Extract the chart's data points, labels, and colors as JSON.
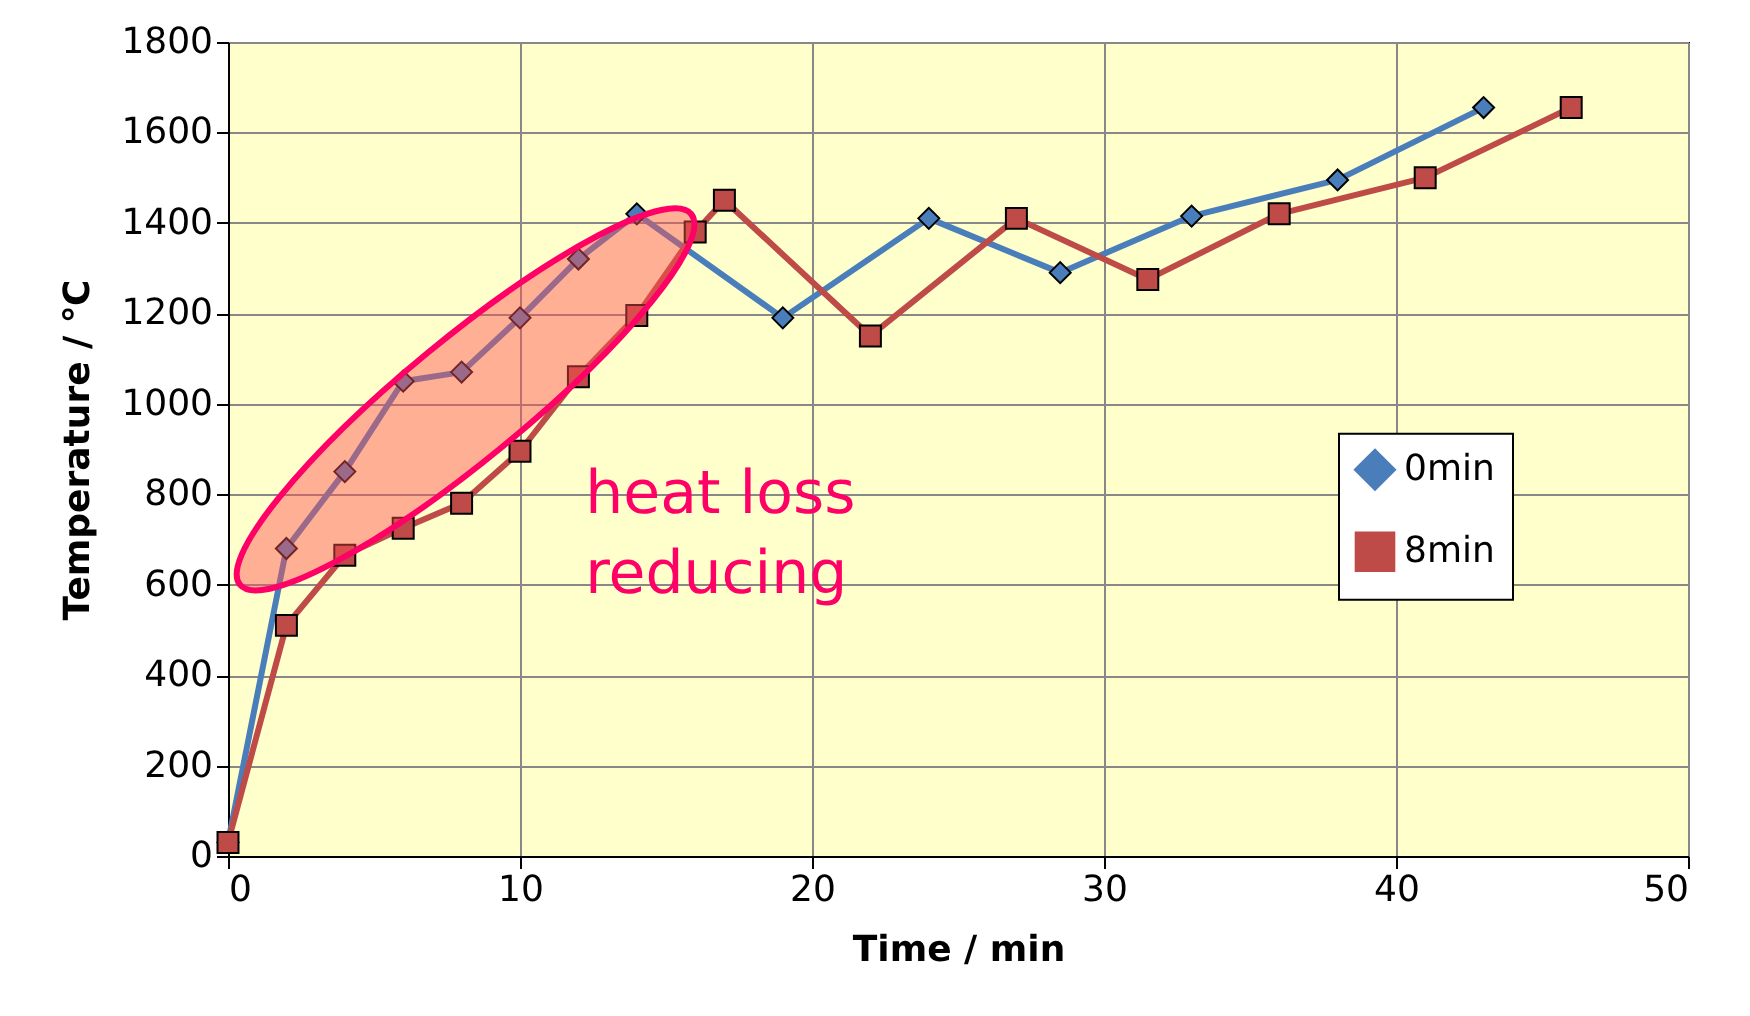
{
  "chart_data": {
    "type": "line",
    "xlabel": "Time / min",
    "ylabel": "Temperature / ℃",
    "xlim": [
      0,
      50
    ],
    "xticks": [
      0,
      10,
      20,
      30,
      40,
      50
    ],
    "ylim": [
      0,
      1800
    ],
    "yticks": [
      0,
      200,
      400,
      600,
      800,
      1000,
      1200,
      1400,
      1600,
      1800
    ],
    "grid": true,
    "legend": "right",
    "line_style": "solid",
    "annotations": [
      "heat loss\nreducing"
    ],
    "series": [
      {
        "name": "0min",
        "color": "#4a7ebb",
        "marker": "diamond",
        "x": [
          0,
          2,
          4,
          6,
          8,
          10,
          12,
          14,
          19,
          24,
          28.5,
          33,
          38,
          43
        ],
        "values": [
          30,
          680,
          850,
          1050,
          1070,
          1190,
          1320,
          1420,
          1190,
          1410,
          1290,
          1415,
          1495,
          1655
        ]
      },
      {
        "name": "8min",
        "color": "#be4b48",
        "marker": "square",
        "x": [
          0,
          2,
          4,
          6,
          8,
          10,
          12,
          14,
          16,
          17,
          22,
          27,
          31.5,
          36,
          41,
          46
        ],
        "values": [
          30,
          510,
          665,
          725,
          780,
          895,
          1060,
          1195,
          1380,
          1450,
          1150,
          1410,
          1275,
          1420,
          1500,
          1655
        ]
      }
    ]
  }
}
